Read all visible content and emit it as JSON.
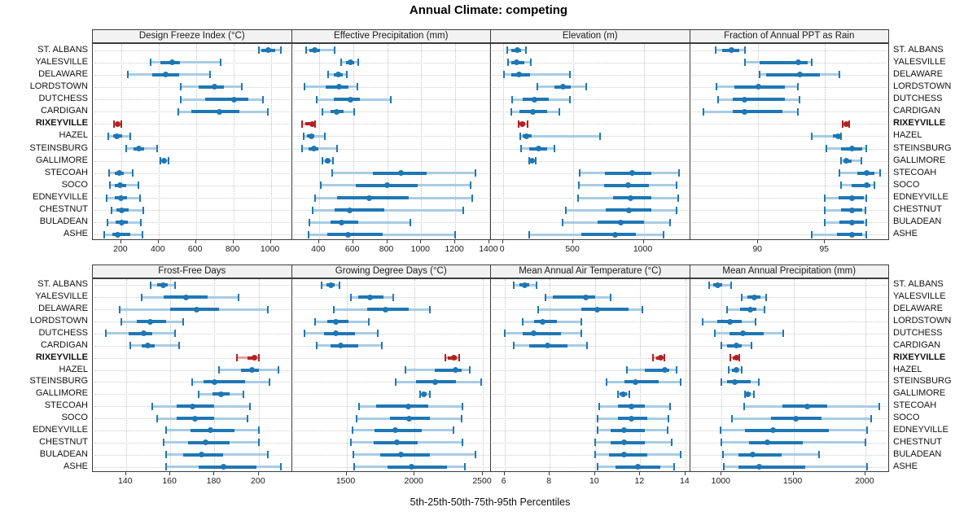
{
  "title": "Annual Climate: competing",
  "caption": "5th-25th-50th-75th-95th Percentiles",
  "colors": {
    "series_blue": "#1f77b4",
    "series_blue_light": "#a8cce4",
    "highlight_red": "#b22222",
    "highlight_red_light": "#e4a39f",
    "strip_bg": "#f2f2f2",
    "panel_border": "#3c3c3c",
    "grid": "#c9c9c9"
  },
  "sites": [
    "ST. ALBANS",
    "YALESVILLE",
    "DELAWARE",
    "LORDSTOWN",
    "DUTCHESS",
    "CARDIGAN",
    "RIXEYVILLE",
    "HAZEL",
    "STEINSBURG",
    "GALLIMORE",
    "STECOAH",
    "SOCO",
    "EDNEYVILLE",
    "CHESTNUT",
    "BULADEAN",
    "ASHE"
  ],
  "highlight_site": "RIXEYVILLE",
  "chart_data": {
    "type": "scatter",
    "subtype": "percentile-dotplot (5th-25th-50th-75th-95th whisker/box/median-dot), lattice 2x4 grid",
    "legend_position": "none",
    "grid": "dotted",
    "panels": [
      {
        "title": "Design Freeze Index (°C)",
        "ticks": [
          200,
          400,
          600,
          800,
          1000
        ],
        "range": [
          48,
          1113
        ],
        "values": [
          [
            935,
            948,
            988,
            1023,
            1056
          ],
          [
            356,
            411,
            472,
            513,
            731
          ],
          [
            236,
            364,
            436,
            510,
            676
          ],
          [
            520,
            615,
            698,
            748,
            845
          ],
          [
            517,
            650,
            805,
            880,
            960
          ],
          [
            505,
            575,
            723,
            833,
            985
          ],
          [
            160,
            170,
            181,
            192,
            201
          ],
          [
            132,
            156,
            178,
            204,
            248
          ],
          [
            225,
            265,
            295,
            321,
            392
          ],
          [
            408,
            416,
            428,
            440,
            452
          ],
          [
            135,
            164,
            188,
            215,
            261
          ],
          [
            138,
            167,
            193,
            225,
            290
          ],
          [
            120,
            164,
            196,
            233,
            302
          ],
          [
            147,
            175,
            204,
            239,
            316
          ],
          [
            127,
            171,
            203,
            236,
            306
          ],
          [
            110,
            153,
            181,
            247,
            312
          ]
        ]
      },
      {
        "title": "Effective Precipitation (mm)",
        "ticks": [
          400,
          600,
          800,
          1000,
          1200,
          1400
        ],
        "range": [
          240,
          1410
        ],
        "values": [
          [
            323,
            343,
            374,
            405,
            492
          ],
          [
            530,
            560,
            585,
            605,
            630
          ],
          [
            454,
            484,
            512,
            538,
            564
          ],
          [
            316,
            438,
            515,
            573,
            625
          ],
          [
            385,
            484,
            584,
            640,
            820
          ],
          [
            420,
            466,
            504,
            546,
            607
          ],
          [
            300,
            318,
            360,
            372,
            378
          ],
          [
            308,
            327,
            354,
            374,
            435
          ],
          [
            300,
            338,
            369,
            397,
            504
          ],
          [
            420,
            435,
            451,
            464,
            481
          ],
          [
            477,
            717,
            880,
            1031,
            1320
          ],
          [
            408,
            615,
            800,
            980,
            1290
          ],
          [
            375,
            505,
            695,
            925,
            1300
          ],
          [
            360,
            490,
            580,
            785,
            1245
          ],
          [
            345,
            466,
            533,
            630,
            935
          ],
          [
            340,
            446,
            570,
            775,
            1200
          ]
        ]
      },
      {
        "title": "Elevation (m)",
        "ticks": [
          0,
          500,
          1000
        ],
        "range": [
          -85,
          1330
        ],
        "values": [
          [
            30,
            62,
            102,
            131,
            163
          ],
          [
            35,
            60,
            96,
            150,
            196
          ],
          [
            10,
            58,
            115,
            192,
            478
          ],
          [
            246,
            365,
            427,
            481,
            592
          ],
          [
            67,
            138,
            227,
            323,
            477
          ],
          [
            62,
            120,
            210,
            317,
            400
          ],
          [
            112,
            119,
            138,
            158,
            176
          ],
          [
            125,
            138,
            169,
            202,
            690
          ],
          [
            131,
            188,
            256,
            312,
            369
          ],
          [
            188,
            196,
            208,
            218,
            231
          ],
          [
            548,
            727,
            919,
            1058,
            1250
          ],
          [
            540,
            720,
            890,
            1040,
            1235
          ],
          [
            535,
            780,
            910,
            1055,
            1245
          ],
          [
            450,
            730,
            895,
            1055,
            1235
          ],
          [
            425,
            675,
            840,
            1005,
            1190
          ],
          [
            185,
            558,
            795,
            945,
            1140
          ]
        ]
      },
      {
        "title": "Fraction of Annual PPT as Rain",
        "ticks": [
          90,
          95
        ],
        "range": [
          84.9,
          99.8
        ],
        "values": [
          [
            86.8,
            87.3,
            88.0,
            88.6,
            89.0
          ],
          [
            89.0,
            90.1,
            93.0,
            93.7,
            94.0
          ],
          [
            90.1,
            90.6,
            93.1,
            94.6,
            96.1
          ],
          [
            86.9,
            88.2,
            90.0,
            92.0,
            93.0
          ],
          [
            87.0,
            88.1,
            89.0,
            92.0,
            93.1
          ],
          [
            85.9,
            88.1,
            89.0,
            91.8,
            93.0
          ],
          [
            96.3,
            96.5,
            96.6,
            96.7,
            96.8
          ],
          [
            94.0,
            95.6,
            96.0,
            96.1,
            96.2
          ],
          [
            95.1,
            96.2,
            97.0,
            97.8,
            98.1
          ],
          [
            96.2,
            96.4,
            96.6,
            97.0,
            97.7
          ],
          [
            96.1,
            97.4,
            98.1,
            98.7,
            99.1
          ],
          [
            96.2,
            97.0,
            98.1,
            98.4,
            98.7
          ],
          [
            95.0,
            96.0,
            97.0,
            97.9,
            98.1
          ],
          [
            95.0,
            96.2,
            97.0,
            97.8,
            98.0
          ],
          [
            95.0,
            96.1,
            97.0,
            97.9,
            98.1
          ],
          [
            94.0,
            95.9,
            97.0,
            97.8,
            98.1
          ]
        ]
      },
      {
        "title": "Frost-Free Days",
        "ticks": [
          140,
          160,
          180,
          200
        ],
        "range": [
          125,
          215
        ],
        "values": [
          [
            151,
            154,
            157,
            159,
            162
          ],
          [
            147,
            157,
            167,
            177,
            191
          ],
          [
            137,
            160,
            172,
            182,
            204
          ],
          [
            138,
            145,
            151,
            158,
            166
          ],
          [
            131,
            141,
            148,
            152,
            162
          ],
          [
            142,
            147,
            150,
            153,
            164
          ],
          [
            190,
            195,
            198,
            199,
            200
          ],
          [
            182,
            192,
            197,
            200,
            209
          ],
          [
            170,
            175,
            180,
            194,
            205
          ],
          [
            173,
            179,
            183,
            187,
            193
          ],
          [
            152,
            163,
            170,
            180,
            196
          ],
          [
            154,
            163,
            171,
            180,
            195
          ],
          [
            158,
            169,
            178,
            189,
            200
          ],
          [
            157,
            168,
            176,
            187,
            200
          ],
          [
            158,
            166,
            174,
            184,
            204
          ],
          [
            158,
            173,
            184,
            199,
            210
          ]
        ]
      },
      {
        "title": "Growing Degree Days (°C)",
        "ticks": [
          1500,
          2000,
          2500
        ],
        "range": [
          1100,
          2560
        ],
        "values": [
          [
            1320,
            1355,
            1385,
            1415,
            1450
          ],
          [
            1530,
            1585,
            1675,
            1775,
            1845
          ],
          [
            1405,
            1650,
            1785,
            1955,
            2110
          ],
          [
            1270,
            1360,
            1425,
            1515,
            1665
          ],
          [
            1195,
            1335,
            1425,
            1565,
            1730
          ],
          [
            1280,
            1385,
            1460,
            1590,
            1760
          ],
          [
            2225,
            2245,
            2290,
            2310,
            2325
          ],
          [
            1935,
            2145,
            2300,
            2345,
            2405
          ],
          [
            1860,
            2010,
            2150,
            2305,
            2490
          ],
          [
            2040,
            2050,
            2070,
            2090,
            2110
          ],
          [
            1595,
            1720,
            1955,
            2100,
            2350
          ],
          [
            1575,
            1820,
            1960,
            2110,
            2345
          ],
          [
            1545,
            1705,
            1860,
            2050,
            2285
          ],
          [
            1535,
            1700,
            1870,
            2020,
            2350
          ],
          [
            1550,
            1745,
            1900,
            2110,
            2445
          ],
          [
            1555,
            1800,
            1980,
            2240,
            2370
          ]
        ]
      },
      {
        "title": "Mean Annual Air Temperature (°C)",
        "ticks": [
          6,
          8,
          10,
          12,
          14
        ],
        "range": [
          5.4,
          14.2
        ],
        "values": [
          [
            6.4,
            6.65,
            6.9,
            7.1,
            7.4
          ],
          [
            7.8,
            8.15,
            9.6,
            10.0,
            10.7
          ],
          [
            7.5,
            9.4,
            10.1,
            11.5,
            12.1
          ],
          [
            6.8,
            7.3,
            7.7,
            8.3,
            9.4
          ],
          [
            6.0,
            6.8,
            7.3,
            8.5,
            9.4
          ],
          [
            6.4,
            7.1,
            7.9,
            8.8,
            9.65
          ],
          [
            12.55,
            12.7,
            12.9,
            13.0,
            13.05
          ],
          [
            11.4,
            12.2,
            13.1,
            13.3,
            13.6
          ],
          [
            10.5,
            11.3,
            11.8,
            12.8,
            13.8
          ],
          [
            11.0,
            11.1,
            11.25,
            11.4,
            11.5
          ],
          [
            10.2,
            11.0,
            11.6,
            12.2,
            13.3
          ],
          [
            10.1,
            11.0,
            11.6,
            12.3,
            13.25
          ],
          [
            10.1,
            10.7,
            11.3,
            12.2,
            13.2
          ],
          [
            10.0,
            10.7,
            11.3,
            12.2,
            13.4
          ],
          [
            10.0,
            10.6,
            11.3,
            12.3,
            13.8
          ],
          [
            10.1,
            10.9,
            11.9,
            12.9,
            13.5
          ]
        ]
      },
      {
        "title": "Mean Annual Precipitation (mm)",
        "ticks": [
          1000,
          1500,
          2000
        ],
        "range": [
          780,
          2165
        ],
        "values": [
          [
            915,
            940,
            970,
            1005,
            1065
          ],
          [
            1140,
            1180,
            1225,
            1270,
            1310
          ],
          [
            1040,
            1130,
            1200,
            1240,
            1300
          ],
          [
            865,
            970,
            1060,
            1140,
            1235
          ],
          [
            955,
            1055,
            1150,
            1290,
            1430
          ],
          [
            995,
            1040,
            1100,
            1140,
            1205
          ],
          [
            1060,
            1075,
            1105,
            1115,
            1125
          ],
          [
            1050,
            1070,
            1100,
            1120,
            1140
          ],
          [
            995,
            1035,
            1090,
            1200,
            1260
          ],
          [
            1160,
            1170,
            1180,
            1205,
            1225
          ],
          [
            1155,
            1420,
            1595,
            1735,
            2095
          ],
          [
            1070,
            1345,
            1515,
            1695,
            2040
          ],
          [
            990,
            1160,
            1360,
            1745,
            2010
          ],
          [
            995,
            1190,
            1320,
            1565,
            2000
          ],
          [
            1010,
            1115,
            1215,
            1420,
            1675
          ],
          [
            1015,
            1115,
            1260,
            1580,
            2010
          ]
        ]
      }
    ]
  }
}
